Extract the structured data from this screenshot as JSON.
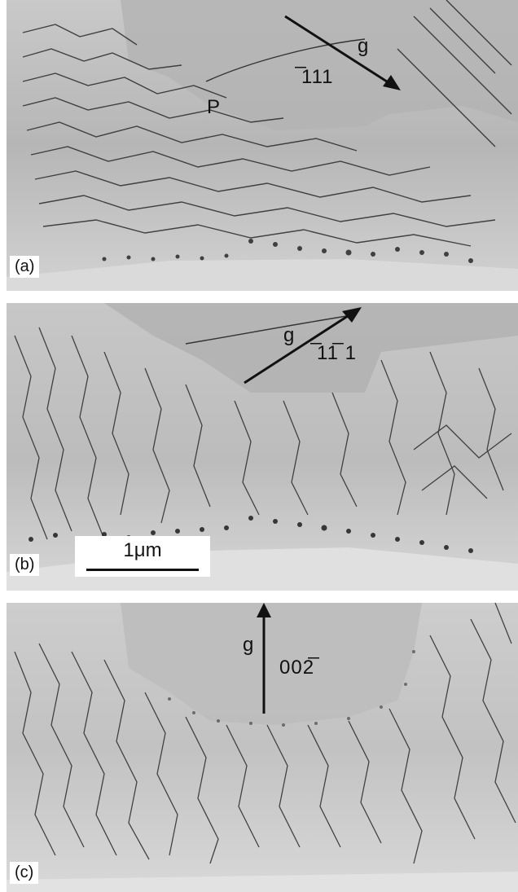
{
  "panels": [
    {
      "label": "(a)",
      "g_label": "g",
      "g_vector": "̅111",
      "point_label": "P"
    },
    {
      "label": "(b)",
      "g_label": "g",
      "g_vector": "̅11̅ 1"
    },
    {
      "label": "(c)",
      "g_label": "g",
      "g_vector": "002̅"
    }
  ],
  "scale_bar": {
    "label": "1μm"
  }
}
